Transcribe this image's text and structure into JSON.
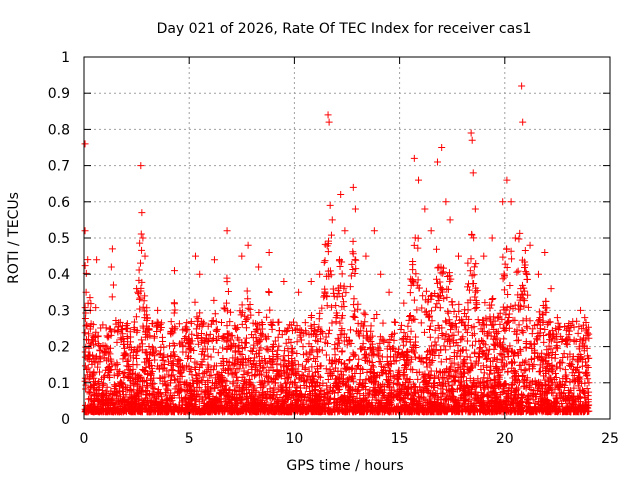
{
  "chart_data": {
    "type": "scatter",
    "title": "Day 021 of 2026, Rate Of TEC Index for receiver cas1",
    "xlabel": "GPS time / hours",
    "ylabel": "ROTI / TECUs",
    "xlim": [
      0,
      25
    ],
    "ylim": [
      0,
      1
    ],
    "xticks": [
      "0",
      "5",
      "10",
      "15",
      "20",
      "25"
    ],
    "yticks": [
      "0",
      "0.1",
      "0.2",
      "0.3",
      "0.4",
      "0.5",
      "0.6",
      "0.7",
      "0.8",
      "0.9",
      "1"
    ],
    "grid": true,
    "marker": "+",
    "color": "#ff0000",
    "series": [
      {
        "name": "ROTI",
        "note": "dense scatter of many thousands of samples; representative points listed",
        "points": [
          [
            0.05,
            0.76
          ],
          [
            0.05,
            0.52
          ],
          [
            0.1,
            0.35
          ],
          [
            0.3,
            0.3
          ],
          [
            0.6,
            0.44
          ],
          [
            0.8,
            0.2
          ],
          [
            1.3,
            0.42
          ],
          [
            1.4,
            0.37
          ],
          [
            1.35,
            0.47
          ],
          [
            2.0,
            0.25
          ],
          [
            2.5,
            0.36
          ],
          [
            2.7,
            0.7
          ],
          [
            2.75,
            0.57
          ],
          [
            2.8,
            0.5
          ],
          [
            2.9,
            0.45
          ],
          [
            3.5,
            0.3
          ],
          [
            4.3,
            0.41
          ],
          [
            5.3,
            0.45
          ],
          [
            5.5,
            0.4
          ],
          [
            6.2,
            0.44
          ],
          [
            6.8,
            0.52
          ],
          [
            7.5,
            0.45
          ],
          [
            7.8,
            0.48
          ],
          [
            8.3,
            0.42
          ],
          [
            8.8,
            0.46
          ],
          [
            9.5,
            0.38
          ],
          [
            10.2,
            0.35
          ],
          [
            10.8,
            0.38
          ],
          [
            11.2,
            0.4
          ],
          [
            11.6,
            0.84
          ],
          [
            11.65,
            0.82
          ],
          [
            11.7,
            0.59
          ],
          [
            11.8,
            0.55
          ],
          [
            12.2,
            0.62
          ],
          [
            12.4,
            0.52
          ],
          [
            12.8,
            0.64
          ],
          [
            12.9,
            0.58
          ],
          [
            13.4,
            0.45
          ],
          [
            13.8,
            0.52
          ],
          [
            14.1,
            0.4
          ],
          [
            14.5,
            0.35
          ],
          [
            15.2,
            0.32
          ],
          [
            15.7,
            0.72
          ],
          [
            15.9,
            0.66
          ],
          [
            16.2,
            0.58
          ],
          [
            16.5,
            0.52
          ],
          [
            16.8,
            0.71
          ],
          [
            17.0,
            0.75
          ],
          [
            17.2,
            0.6
          ],
          [
            17.4,
            0.55
          ],
          [
            17.8,
            0.45
          ],
          [
            18.4,
            0.79
          ],
          [
            18.45,
            0.77
          ],
          [
            18.5,
            0.68
          ],
          [
            18.6,
            0.58
          ],
          [
            19.0,
            0.45
          ],
          [
            19.4,
            0.5
          ],
          [
            19.9,
            0.6
          ],
          [
            20.1,
            0.66
          ],
          [
            20.3,
            0.6
          ],
          [
            20.5,
            0.5
          ],
          [
            20.8,
            0.92
          ],
          [
            20.85,
            0.82
          ],
          [
            21.2,
            0.48
          ],
          [
            21.6,
            0.4
          ],
          [
            21.9,
            0.46
          ],
          [
            22.2,
            0.36
          ],
          [
            22.5,
            0.28
          ],
          [
            23.0,
            0.22
          ],
          [
            23.6,
            0.3
          ],
          [
            23.8,
            0.28
          ],
          [
            24.0,
            0.1
          ]
        ]
      }
    ]
  }
}
